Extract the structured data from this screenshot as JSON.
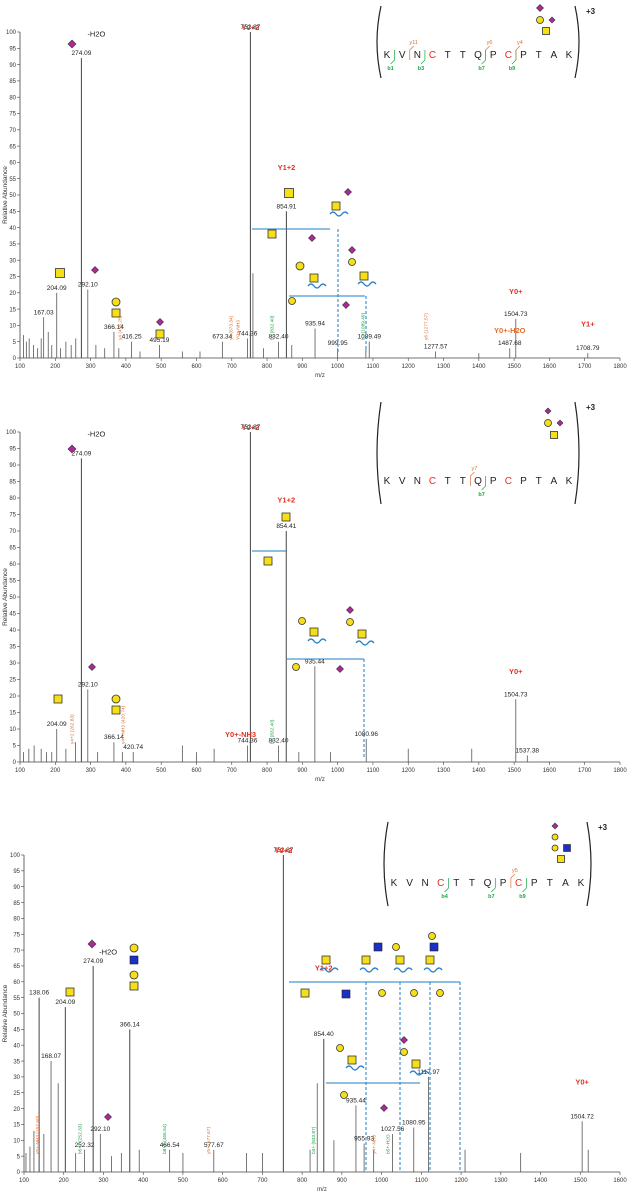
{
  "figure": {
    "ylabel_main": "Relative Abundance",
    "ylabel_mid": "Relative Abundance"
  },
  "chart_data": [
    {
      "type": "bar",
      "xlabel": "m/z",
      "ylabel": "Relative Abundance",
      "xlim": [
        100,
        1800
      ],
      "ylim": [
        0,
        100
      ],
      "xticks": [
        100,
        200,
        300,
        400,
        500,
        600,
        700,
        800,
        900,
        1000,
        1100,
        1200,
        1300,
        1400,
        1500,
        1600,
        1700,
        1800
      ],
      "yticks": [
        0,
        5,
        10,
        15,
        20,
        25,
        30,
        35,
        40,
        45,
        50,
        55,
        60,
        65,
        70,
        75,
        80,
        85,
        90,
        95,
        100
      ],
      "charge": "+3",
      "sequence": [
        "K",
        "V",
        "N",
        "C",
        "T",
        "T",
        "Q",
        "P",
        "C",
        "P",
        "T",
        "A",
        "K"
      ],
      "highlighted_residues": [
        3,
        8
      ],
      "b_ions": [
        {
          "label": "b1",
          "after": 0
        },
        {
          "label": "b3",
          "after": 2
        },
        {
          "label": "b7",
          "after": 6
        },
        {
          "label": "b9",
          "after": 8
        }
      ],
      "y_ions": [
        {
          "label": "y11",
          "after": 1
        },
        {
          "label": "y6",
          "after": 6
        },
        {
          "label": "y4",
          "after": 8
        }
      ],
      "peaks": [
        {
          "mz": 110,
          "i": 7
        },
        {
          "mz": 118,
          "i": 5
        },
        {
          "mz": 126,
          "i": 6
        },
        {
          "mz": 138,
          "i": 4
        },
        {
          "mz": 150,
          "i": 3
        },
        {
          "mz": 160,
          "i": 6
        },
        {
          "mz": 167.03,
          "i": 12.5,
          "label": "167.03"
        },
        {
          "mz": 180,
          "i": 8
        },
        {
          "mz": 190,
          "i": 4
        },
        {
          "mz": 204.09,
          "i": 20,
          "label": "204.09"
        },
        {
          "mz": 215,
          "i": 3
        },
        {
          "mz": 230,
          "i": 5
        },
        {
          "mz": 245,
          "i": 4
        },
        {
          "mz": 258,
          "i": 6
        },
        {
          "mz": 274.09,
          "i": 92,
          "label": "274.09"
        },
        {
          "mz": 292.1,
          "i": 21,
          "label": "292.10"
        },
        {
          "mz": 315,
          "i": 4
        },
        {
          "mz": 340,
          "i": 3
        },
        {
          "mz": 366.14,
          "i": 8,
          "label": "366.14"
        },
        {
          "mz": 380,
          "i": 3
        },
        {
          "mz": 416.25,
          "i": 5,
          "label": "416.25"
        },
        {
          "mz": 440,
          "i": 2
        },
        {
          "mz": 495.19,
          "i": 4,
          "label": "495.19"
        },
        {
          "mz": 560,
          "i": 2
        },
        {
          "mz": 610,
          "i": 2
        },
        {
          "mz": 673.34,
          "i": 5,
          "label": "673.34"
        },
        {
          "mz": 744.36,
          "i": 6,
          "label": "744.36"
        },
        {
          "mz": 752.87,
          "i": 100,
          "label": "752.87"
        },
        {
          "mz": 760,
          "i": 26
        },
        {
          "mz": 790,
          "i": 3
        },
        {
          "mz": 832.4,
          "i": 5,
          "label": "832.40"
        },
        {
          "mz": 854.91,
          "i": 45,
          "label": "854.91"
        },
        {
          "mz": 870,
          "i": 4
        },
        {
          "mz": 935.94,
          "i": 9,
          "label": "935.94"
        },
        {
          "mz": 999.95,
          "i": 3,
          "label": "999.95"
        },
        {
          "mz": 1089.49,
          "i": 5,
          "label": "1089.49"
        },
        {
          "mz": 1080,
          "i": 3
        },
        {
          "mz": 1277.57,
          "i": 2,
          "label": "1277.57"
        },
        {
          "mz": 1400,
          "i": 1.5
        },
        {
          "mz": 1487.68,
          "i": 3,
          "label": "1487.68"
        },
        {
          "mz": 1504.73,
          "i": 12,
          "label": "1504.73"
        },
        {
          "mz": 1708.79,
          "i": 1.5,
          "label": "1708.79"
        }
      ],
      "ion_labels": [
        {
          "text": "Y0+2",
          "mz": 752.87,
          "i": 100,
          "color": "#e03020"
        },
        {
          "text": "Y1+2",
          "mz": 854.91,
          "i": 57,
          "color": "#e03020"
        },
        {
          "text": "Y0+",
          "mz": 1504.73,
          "i": 19,
          "color": "#e03020"
        },
        {
          "text": "Y1+",
          "mz": 1708.79,
          "i": 9,
          "color": "#e03020"
        },
        {
          "text": "Y0+-H2O",
          "mz": 1487.68,
          "i": 7,
          "color": "#e07030"
        },
        {
          "text": "-H2O",
          "mz": 274.09,
          "i": 98,
          "color": "#222222"
        }
      ],
      "fragment_tags": [
        {
          "text": "y4 (416.25)",
          "mz": 388,
          "color": "#e07030"
        },
        {
          "text": "y4 (673.34)",
          "mz": 702,
          "color": "#e07030"
        },
        {
          "text": "Y0+-NH3",
          "mz": 722,
          "color": "#e07030"
        },
        {
          "text": "b3 (832.40)",
          "mz": 818,
          "color": "#1aa54a"
        },
        {
          "text": "b7 (1089.49)",
          "mz": 1076,
          "color": "#1aa54a"
        },
        {
          "text": "y6 (1277.57)",
          "mz": 1255,
          "color": "#e07030"
        }
      ]
    },
    {
      "type": "bar",
      "xlabel": "m/z",
      "ylabel": "Relative Abundance",
      "xlim": [
        100,
        1800
      ],
      "ylim": [
        0,
        100
      ],
      "xticks": [
        100,
        200,
        300,
        400,
        500,
        600,
        700,
        800,
        900,
        1000,
        1100,
        1200,
        1300,
        1400,
        1500,
        1600,
        1700,
        1800
      ],
      "yticks": [
        0,
        5,
        10,
        15,
        20,
        25,
        30,
        35,
        40,
        45,
        50,
        55,
        60,
        65,
        70,
        75,
        80,
        85,
        90,
        95,
        100
      ],
      "charge": "+3",
      "sequence": [
        "K",
        "V",
        "N",
        "C",
        "T",
        "T",
        "Q",
        "P",
        "C",
        "P",
        "T",
        "A",
        "K"
      ],
      "highlighted_residues": [
        3,
        8
      ],
      "b_ions": [
        {
          "label": "b7",
          "after": 6
        }
      ],
      "y_ions": [
        {
          "label": "y7",
          "after": 5
        }
      ],
      "peaks": [
        {
          "mz": 110,
          "i": 3
        },
        {
          "mz": 125,
          "i": 4
        },
        {
          "mz": 140,
          "i": 5
        },
        {
          "mz": 160,
          "i": 4
        },
        {
          "mz": 175,
          "i": 3
        },
        {
          "mz": 190,
          "i": 3
        },
        {
          "mz": 204.09,
          "i": 10,
          "label": "204.09"
        },
        {
          "mz": 230,
          "i": 4
        },
        {
          "mz": 257,
          "i": 6
        },
        {
          "mz": 274.09,
          "i": 92,
          "label": "274.09"
        },
        {
          "mz": 292.1,
          "i": 22,
          "label": "292.10"
        },
        {
          "mz": 320,
          "i": 3
        },
        {
          "mz": 366.14,
          "i": 6,
          "label": "366.14"
        },
        {
          "mz": 390,
          "i": 3
        },
        {
          "mz": 420.74,
          "i": 3,
          "label": "420.74"
        },
        {
          "mz": 560,
          "i": 5
        },
        {
          "mz": 600,
          "i": 3
        },
        {
          "mz": 650,
          "i": 4
        },
        {
          "mz": 744.36,
          "i": 5,
          "label": "744.36"
        },
        {
          "mz": 752.87,
          "i": 100,
          "label": "752.87"
        },
        {
          "mz": 832.4,
          "i": 5,
          "label": "832.40"
        },
        {
          "mz": 854.41,
          "i": 70,
          "label": "854.41"
        },
        {
          "mz": 890,
          "i": 3
        },
        {
          "mz": 935.44,
          "i": 29,
          "label": "935.44"
        },
        {
          "mz": 980,
          "i": 3
        },
        {
          "mz": 1080.96,
          "i": 7,
          "label": "1080.96"
        },
        {
          "mz": 1200,
          "i": 4
        },
        {
          "mz": 1380,
          "i": 4
        },
        {
          "mz": 1504.73,
          "i": 19,
          "label": "1504.73"
        },
        {
          "mz": 1537.38,
          "i": 2,
          "label": "1537.38"
        }
      ],
      "ion_labels": [
        {
          "text": "Y0+2",
          "mz": 752.87,
          "i": 100,
          "color": "#e03020"
        },
        {
          "text": "Y1+2",
          "mz": 854.41,
          "i": 78,
          "color": "#e03020"
        },
        {
          "text": "Y0+",
          "mz": 1504.73,
          "i": 26,
          "color": "#e03020"
        },
        {
          "text": "-H2O",
          "mz": 274.09,
          "i": 98,
          "color": "#222222"
        },
        {
          "text": "Y0+-NH3",
          "mz": 725,
          "i": 7,
          "color": "#e03020"
        }
      ],
      "fragment_tags": [
        {
          "text": "y4+2 (262.83)",
          "mz": 252,
          "color": "#e07030"
        },
        {
          "text": "y4+-NH3 (420.74)",
          "mz": 396,
          "color": "#e07030"
        },
        {
          "text": "b4 (832.40)",
          "mz": 818,
          "color": "#1aa54a"
        }
      ]
    },
    {
      "type": "bar",
      "xlabel": "m/z",
      "ylabel": "Relative Abundance",
      "xlim": [
        100,
        1600
      ],
      "ylim": [
        0,
        100
      ],
      "xticks": [
        100,
        200,
        300,
        400,
        500,
        600,
        700,
        800,
        900,
        1000,
        1100,
        1200,
        1300,
        1400,
        1500,
        1600
      ],
      "yticks": [
        0,
        5,
        10,
        15,
        20,
        25,
        30,
        35,
        40,
        45,
        50,
        55,
        60,
        65,
        70,
        75,
        80,
        85,
        90,
        95,
        100
      ],
      "charge": "+3",
      "sequence": [
        "K",
        "V",
        "N",
        "C",
        "T",
        "T",
        "Q",
        "P",
        "C",
        "P",
        "T",
        "A",
        "K"
      ],
      "highlighted_residues": [
        3,
        8
      ],
      "b_ions": [
        {
          "label": "b4",
          "after": 3
        },
        {
          "label": "b7",
          "after": 6
        },
        {
          "label": "b9",
          "after": 8
        }
      ],
      "y_ions": [
        {
          "label": "y5",
          "after": 7
        }
      ],
      "peaks": [
        {
          "mz": 105,
          "i": 6
        },
        {
          "mz": 115,
          "i": 8
        },
        {
          "mz": 125,
          "i": 13
        },
        {
          "mz": 138.06,
          "i": 55,
          "label": "138.06"
        },
        {
          "mz": 150,
          "i": 12
        },
        {
          "mz": 168.07,
          "i": 35,
          "label": "168.07"
        },
        {
          "mz": 186,
          "i": 28
        },
        {
          "mz": 204.09,
          "i": 52,
          "label": "204.09"
        },
        {
          "mz": 230,
          "i": 6
        },
        {
          "mz": 252.32,
          "i": 7,
          "label": "252.32"
        },
        {
          "mz": 274.09,
          "i": 65,
          "label": "274.09"
        },
        {
          "mz": 292.1,
          "i": 12,
          "label": "292.10"
        },
        {
          "mz": 320,
          "i": 5
        },
        {
          "mz": 345,
          "i": 6
        },
        {
          "mz": 366.14,
          "i": 45,
          "label": "366.14"
        },
        {
          "mz": 390,
          "i": 7
        },
        {
          "mz": 466.54,
          "i": 7,
          "label": "466.54"
        },
        {
          "mz": 500,
          "i": 6
        },
        {
          "mz": 577.67,
          "i": 7,
          "label": "577.67"
        },
        {
          "mz": 660,
          "i": 6
        },
        {
          "mz": 700,
          "i": 6
        },
        {
          "mz": 752.87,
          "i": 100,
          "label": "752.87"
        },
        {
          "mz": 820,
          "i": 7
        },
        {
          "mz": 838,
          "i": 28
        },
        {
          "mz": 854.4,
          "i": 42,
          "label": "854.40"
        },
        {
          "mz": 880,
          "i": 10
        },
        {
          "mz": 935.44,
          "i": 21,
          "label": "935.44"
        },
        {
          "mz": 955.93,
          "i": 9,
          "label": "955.93"
        },
        {
          "mz": 980,
          "i": 7
        },
        {
          "mz": 1027.56,
          "i": 12,
          "label": "1027.56"
        },
        {
          "mz": 1080.95,
          "i": 14,
          "label": "1080.95"
        },
        {
          "mz": 1117.97,
          "i": 30,
          "label": "1117.97"
        },
        {
          "mz": 1210,
          "i": 7
        },
        {
          "mz": 1350,
          "i": 6
        },
        {
          "mz": 1504.72,
          "i": 16,
          "label": "1504.72"
        },
        {
          "mz": 1520,
          "i": 7
        }
      ],
      "ion_labels": [
        {
          "text": "Y0+2",
          "mz": 752.87,
          "i": 100,
          "color": "#e03020"
        },
        {
          "text": "Y1+2",
          "mz": 854.4,
          "i": 63,
          "color": "#e03020"
        },
        {
          "text": "Y0+",
          "mz": 1504.72,
          "i": 27,
          "color": "#e03020"
        },
        {
          "text": "-H2O",
          "mz": 274.09,
          "i": 68,
          "color": "#222222"
        }
      ],
      "fragment_tags": [
        {
          "text": "y5+-NH3 (152.60)",
          "mz": 138,
          "color": "#e07030"
        },
        {
          "text": "b5+2 (252.33)",
          "mz": 245,
          "color": "#1aa54a"
        },
        {
          "text": "b8+2 (466.54)",
          "mz": 458,
          "color": "#1aa54a"
        },
        {
          "text": "y5+ (577.67)",
          "mz": 568,
          "color": "#e07030"
        },
        {
          "text": "b3+ (833.87)",
          "mz": 832,
          "color": "#1aa54a"
        },
        {
          "text": "b5+-H2O",
          "mz": 1020,
          "color": "#1aa54a"
        },
        {
          "text": "y4+-NH3",
          "mz": 985,
          "color": "#e07030"
        }
      ]
    }
  ]
}
